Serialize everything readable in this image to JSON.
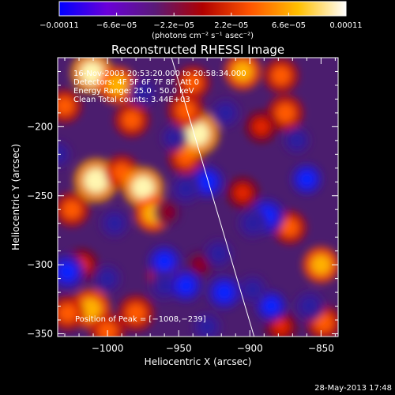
{
  "chart_data": {
    "type": "heatmap",
    "title": "Reconstructed RHESSI Image",
    "xlabel": "Heliocentric X (arcsec)",
    "ylabel": "Heliocentric Y (arcsec)",
    "xlim": [
      -1035,
      -838
    ],
    "ylim": [
      -352,
      -150
    ],
    "x_ticks": [
      -1000,
      -950,
      -900,
      -850
    ],
    "y_ticks": [
      -200,
      -250,
      -300,
      -350
    ],
    "x_tick_labels": [
      "−1000",
      "−950",
      "−900",
      "−850"
    ],
    "y_tick_labels": [
      "−200",
      "−250",
      "−300",
      "−350"
    ],
    "colorbar": {
      "ticks": [
        -0.00011,
        -6.6e-05,
        -2.2e-05,
        2.2e-05,
        6.6e-05,
        0.00011
      ],
      "tick_labels": [
        "−0.00011",
        "−6.6e−05",
        "−2.2e−05",
        "2.2e−05",
        "6.6e−05",
        "0.00011"
      ],
      "unit_label": "(photons cm⁻² s⁻¹ asec⁻²)",
      "colors": [
        "#0000ff",
        "#6a00d8",
        "#5a1a78",
        "#b00000",
        "#ff5500",
        "#ffc000",
        "#ffffff"
      ]
    },
    "info_lines": [
      "16-Nov-2003 20:53:20.000 to 20:58:34.000",
      "Detectors: 4F 5F 6F 7F 8F, Att 0",
      "Energy Range: 25.0 - 50.0 keV",
      "Clean     Total counts: 3.44E+03"
    ],
    "peak_label": "Position of Peak = [−1008,−239]",
    "limb_line": [
      [
        -955,
        -150
      ],
      [
        -897,
        -352
      ]
    ],
    "features": [
      {
        "x": -1011,
        "y": -161,
        "v": 0.9
      },
      {
        "x": -993,
        "y": -170,
        "v": 0.7
      },
      {
        "x": -983,
        "y": -195,
        "v": 0.55
      },
      {
        "x": -1030,
        "y": -185,
        "v": 0.5
      },
      {
        "x": -1008,
        "y": -239,
        "v": 1.0
      },
      {
        "x": -990,
        "y": -233,
        "v": 0.55
      },
      {
        "x": -975,
        "y": -244,
        "v": 0.85
      },
      {
        "x": -1025,
        "y": -260,
        "v": 0.55
      },
      {
        "x": -968,
        "y": -263,
        "v": 0.65
      },
      {
        "x": -1018,
        "y": -300,
        "v": 0.45
      },
      {
        "x": -1012,
        "y": -332,
        "v": 0.8
      },
      {
        "x": -1028,
        "y": -335,
        "v": 0.55
      },
      {
        "x": -1000,
        "y": -348,
        "v": 0.55
      },
      {
        "x": -980,
        "y": -335,
        "v": 0.6
      },
      {
        "x": -960,
        "y": -308,
        "v": 0.5
      },
      {
        "x": -945,
        "y": -222,
        "v": 0.55
      },
      {
        "x": -937,
        "y": -205,
        "v": 1.0
      },
      {
        "x": -945,
        "y": -188,
        "v": 0.6
      },
      {
        "x": -940,
        "y": -168,
        "v": 0.5
      },
      {
        "x": -905,
        "y": -160,
        "v": 0.65
      },
      {
        "x": -878,
        "y": -163,
        "v": 0.55
      },
      {
        "x": -875,
        "y": -190,
        "v": 0.6
      },
      {
        "x": -892,
        "y": -200,
        "v": 0.45
      },
      {
        "x": -905,
        "y": -248,
        "v": 0.45
      },
      {
        "x": -872,
        "y": -273,
        "v": 0.5
      },
      {
        "x": -850,
        "y": -300,
        "v": 0.65
      },
      {
        "x": -848,
        "y": -342,
        "v": 0.55
      },
      {
        "x": -878,
        "y": -345,
        "v": 0.4
      },
      {
        "x": -935,
        "y": -300,
        "v": 0.3
      },
      {
        "x": -958,
        "y": -262,
        "v": 0.2
      },
      {
        "x": -1028,
        "y": -305,
        "v": -0.55
      },
      {
        "x": -960,
        "y": -298,
        "v": -0.5
      },
      {
        "x": -960,
        "y": -315,
        "v": -0.35
      },
      {
        "x": -945,
        "y": -315,
        "v": -0.45
      },
      {
        "x": -930,
        "y": -240,
        "v": -0.5
      },
      {
        "x": -945,
        "y": -245,
        "v": -0.35
      },
      {
        "x": -918,
        "y": -320,
        "v": -0.5
      },
      {
        "x": -922,
        "y": -292,
        "v": -0.3
      },
      {
        "x": -888,
        "y": -265,
        "v": -0.6
      },
      {
        "x": -898,
        "y": -270,
        "v": -0.35
      },
      {
        "x": -885,
        "y": -330,
        "v": -0.4
      },
      {
        "x": -898,
        "y": -318,
        "v": -0.3
      },
      {
        "x": -858,
        "y": -330,
        "v": -0.35
      },
      {
        "x": -995,
        "y": -270,
        "v": -0.3
      },
      {
        "x": -975,
        "y": -175,
        "v": -0.3
      },
      {
        "x": -860,
        "y": -238,
        "v": -0.4
      },
      {
        "x": -917,
        "y": -190,
        "v": -0.3
      },
      {
        "x": -1000,
        "y": -310,
        "v": -0.25
      },
      {
        "x": -930,
        "y": -345,
        "v": -0.3
      },
      {
        "x": -1035,
        "y": -220,
        "v": -0.2
      },
      {
        "x": -953,
        "y": -208,
        "v": -0.2
      },
      {
        "x": -867,
        "y": -210,
        "v": -0.2
      }
    ]
  },
  "footer": {
    "timestamp": "28-May-2013 17:48"
  }
}
